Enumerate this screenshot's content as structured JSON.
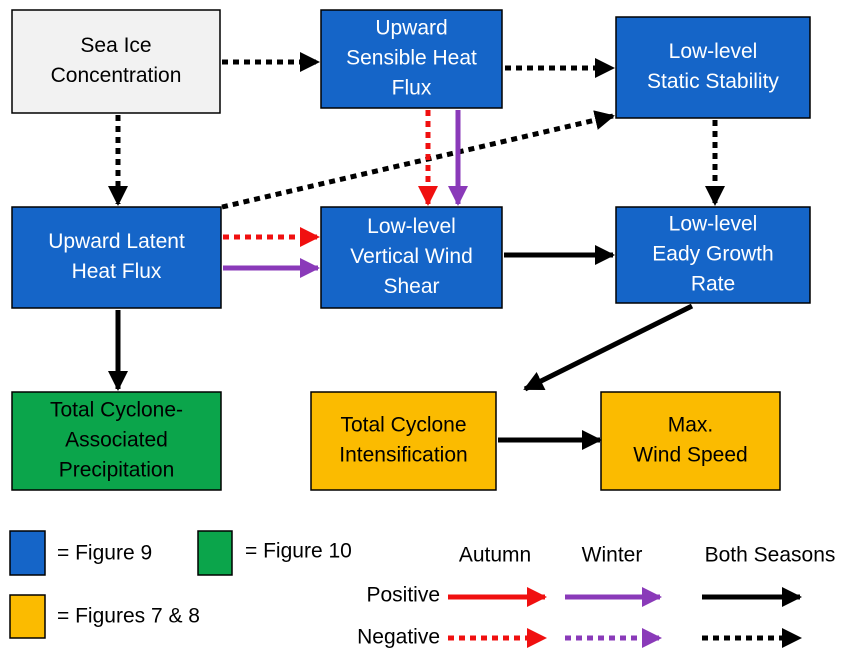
{
  "nodes": [
    {
      "lines": [
        "Sea Ice",
        "Concentration"
      ]
    },
    {
      "lines": [
        "Upward",
        "Sensible Heat",
        "Flux"
      ]
    },
    {
      "lines": [
        "Low-level",
        "Static Stability"
      ]
    },
    {
      "lines": [
        "Upward Latent",
        "Heat Flux"
      ]
    },
    {
      "lines": [
        "Low-level",
        "Vertical Wind",
        "Shear"
      ]
    },
    {
      "lines": [
        "Low-level",
        "Eady Growth",
        "Rate"
      ]
    },
    {
      "lines": [
        "Total Cyclone-",
        "Associated",
        "Precipitation"
      ]
    },
    {
      "lines": [
        "Total Cyclone",
        "Intensification"
      ]
    },
    {
      "lines": [
        "Max.",
        "Wind Speed"
      ]
    }
  ],
  "legend": {
    "figure9": "= Figure 9",
    "figure10": "= Figure 10",
    "figures78": "= Figures 7 & 8",
    "autumn": "Autumn",
    "winter": "Winter",
    "both": "Both Seasons",
    "positive": "Positive",
    "negative": "Negative"
  }
}
